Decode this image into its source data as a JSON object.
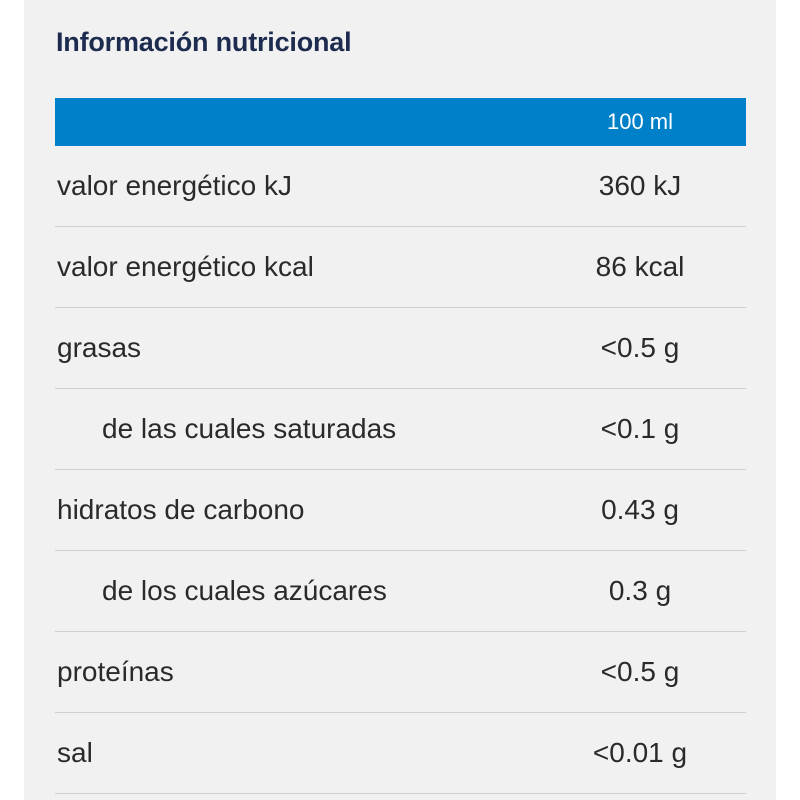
{
  "title": "Información nutricional",
  "header": {
    "column": "100 ml"
  },
  "rows": [
    {
      "name": "valor energético kJ",
      "value": "360 kJ",
      "indent": false
    },
    {
      "name": "valor energético kcal",
      "value": "86 kcal",
      "indent": false
    },
    {
      "name": "grasas",
      "value": "<0.5 g",
      "indent": false
    },
    {
      "name": "de las cuales saturadas",
      "value": "<0.1 g",
      "indent": true
    },
    {
      "name": "hidratos de carbono",
      "value": "0.43 g",
      "indent": false
    },
    {
      "name": "de los cuales azúcares",
      "value": "0.3 g",
      "indent": true
    },
    {
      "name": "proteínas",
      "value": "<0.5 g",
      "indent": false
    },
    {
      "name": "sal",
      "value": "<0.01 g",
      "indent": false
    }
  ],
  "colors": {
    "header_bg": "#0080c9",
    "panel_bg": "#f1f1f1",
    "title": "#1d2b4f"
  }
}
